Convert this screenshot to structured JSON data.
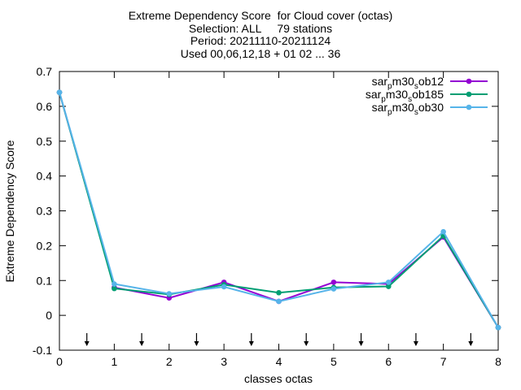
{
  "title_lines": [
    "Extreme Dependency Score  for Cloud cover (octas)",
    "Selection: ALL     79 stations",
    "Period: 20211110-20211124",
    "Used 00,06,12,18 + 01 02 ... 36"
  ],
  "chart_data": {
    "type": "line",
    "title": "Extreme Dependency Score  for Cloud cover (octas)",
    "xlabel": "classes octas",
    "ylabel": "Extreme Dependency Score",
    "xlim": [
      0,
      8
    ],
    "ylim": [
      -0.1,
      0.7
    ],
    "x_ticks": [
      0,
      1,
      2,
      3,
      4,
      5,
      6,
      7,
      8
    ],
    "y_ticks": [
      -0.1,
      0,
      0.1,
      0.2,
      0.3,
      0.4,
      0.5,
      0.6,
      0.7
    ],
    "x_tick_labels": [
      "0",
      "1",
      "2",
      "3",
      "4",
      "5",
      "6",
      "7",
      "8"
    ],
    "y_tick_labels": [
      "-0.1",
      "0",
      "0.1",
      "0.2",
      "0.3",
      "0.4",
      "0.5",
      "0.6",
      "0.7"
    ],
    "grid": false,
    "legend_position": "top-right",
    "x": [
      0,
      1,
      2,
      3,
      4,
      5,
      6,
      7,
      8
    ],
    "series": [
      {
        "name_parts": [
          "sar",
          "p",
          "m30",
          "s",
          "ob12"
        ],
        "color": "#9400d3",
        "values": [
          0.64,
          0.08,
          0.05,
          0.095,
          0.04,
          0.095,
          0.09,
          0.225,
          -0.035
        ]
      },
      {
        "name_parts": [
          "sar",
          "p",
          "m30",
          "s",
          "ob185"
        ],
        "color": "#009e73",
        "values": [
          0.64,
          0.077,
          0.06,
          0.088,
          0.065,
          0.08,
          0.083,
          0.228,
          -0.035
        ]
      },
      {
        "name_parts": [
          "sar",
          "p",
          "m30",
          "s",
          "ob30"
        ],
        "color": "#56b4e9",
        "values": [
          0.64,
          0.09,
          0.062,
          0.082,
          0.04,
          0.076,
          0.095,
          0.24,
          -0.035
        ]
      }
    ],
    "arrow_markers_x": [
      0.5,
      1.5,
      2.5,
      3.5,
      4.5,
      5.5,
      6.5,
      7.5
    ]
  }
}
